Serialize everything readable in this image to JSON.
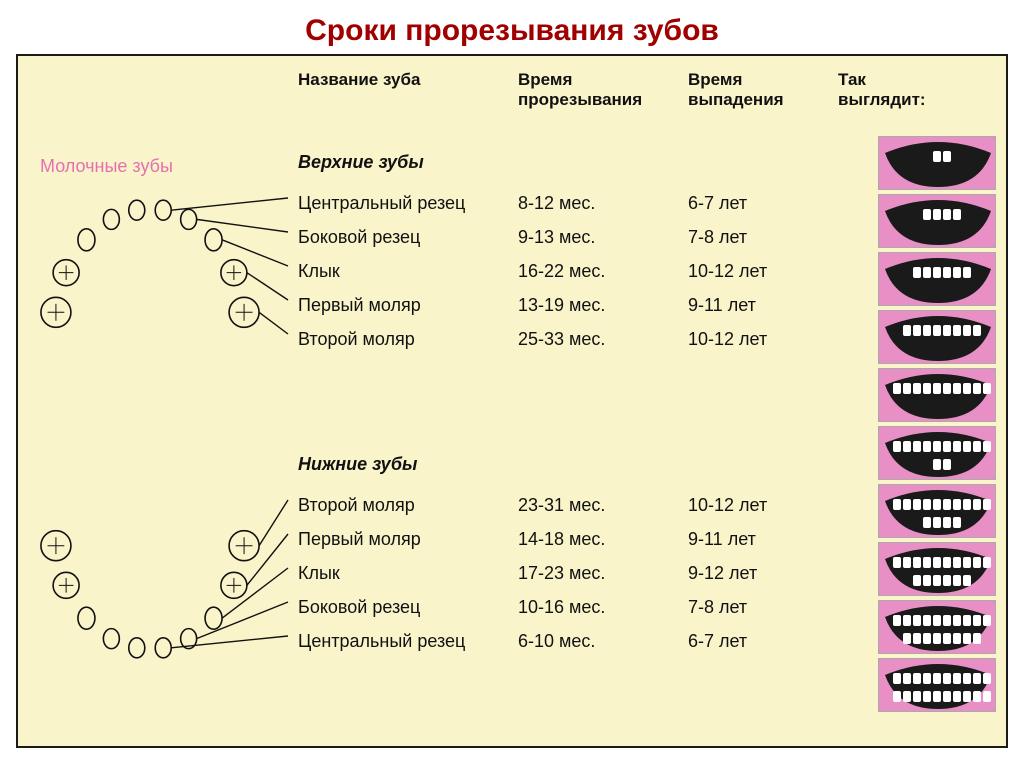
{
  "title": "Сроки прорезывания зубов",
  "background_color": "#faf4cb",
  "border_color": "#1a1a1a",
  "title_color": "#a00000",
  "milk_label": "Молочные зубы",
  "milk_label_color": "#e76fb0",
  "headers": {
    "name": "Название зуба",
    "erupt_l1": "Время",
    "erupt_l2": "прорезывания",
    "shed_l1": "Время",
    "shed_l2": "выпадения",
    "look_l1": "Так",
    "look_l2": "выглядит:"
  },
  "upper": {
    "title": "Верхние зубы",
    "rows": [
      {
        "name": "Центральный резец",
        "erupt": "8-12 мес.",
        "shed": "6-7 лет"
      },
      {
        "name": "Боковой резец",
        "erupt": "9-13 мес.",
        "shed": "7-8 лет"
      },
      {
        "name": "Клык",
        "erupt": "16-22 мес.",
        "shed": "10-12 лет"
      },
      {
        "name": "Первый моляр",
        "erupt": "13-19 мес.",
        "shed": "9-11 лет"
      },
      {
        "name": "Второй моляр",
        "erupt": "25-33 мес.",
        "shed": "10-12 лет"
      }
    ]
  },
  "lower": {
    "title": "Нижние зубы",
    "rows": [
      {
        "name": "Второй моляр",
        "erupt": "23-31 мес.",
        "shed": "10-12 лет"
      },
      {
        "name": "Первый моляр",
        "erupt": "14-18 мес.",
        "shed": "9-11 лет"
      },
      {
        "name": "Клык",
        "erupt": "17-23 мес.",
        "shed": "9-12 лет"
      },
      {
        "name": "Боковой резец",
        "erupt": "10-16 мес.",
        "shed": "7-8 лет"
      },
      {
        "name": "Центральный резец",
        "erupt": "6-10 мес.",
        "shed": "6-7 лет"
      }
    ]
  },
  "diagram": {
    "stroke": "#111111",
    "fill": "#faf4cb",
    "stroke_width": 1.6
  },
  "thumbnails": {
    "count": 10,
    "bg_color": "#e88fc5",
    "mouth_color": "#1a1a1a",
    "tooth_color": "#ffffff",
    "slots_upper": [
      [
        5,
        6
      ],
      [
        4,
        5,
        6,
        7
      ],
      [
        3,
        4,
        5,
        6,
        7,
        8
      ],
      [
        2,
        3,
        4,
        5,
        6,
        7,
        8,
        9
      ],
      [
        1,
        2,
        3,
        4,
        5,
        6,
        7,
        8,
        9,
        10
      ]
    ],
    "slots_lower_start": 5
  }
}
